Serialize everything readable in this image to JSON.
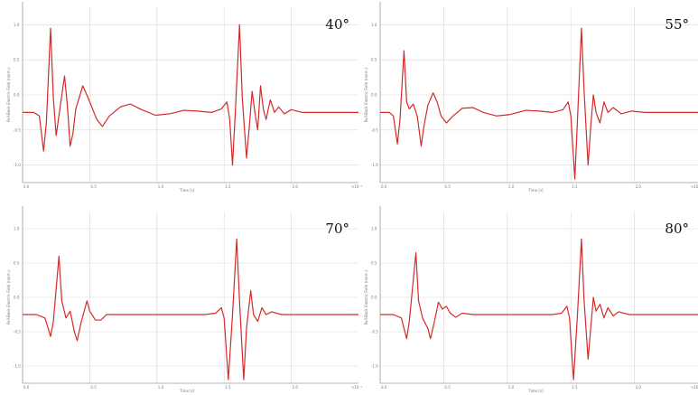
{
  "colors": {
    "trace": "#d42a2a",
    "grid": "#d8d8d8",
    "axis": "#9a9a9a",
    "text": "#111111"
  },
  "chart_data": [
    {
      "type": "line",
      "title": "40°",
      "xlabel": "Time [s]",
      "ylabel": "Pull-Back Electric Field (norm.)",
      "x_scale": "×10⁻⁹",
      "xlim": [
        0,
        2.4
      ],
      "ylim": [
        -1.0,
        1.5
      ],
      "xticks": [
        "0.0",
        "0.5",
        "1.0",
        "1.5",
        "2.0",
        "×10⁻⁹"
      ],
      "yticks": [
        "1.0",
        "0.5",
        "0.0",
        "-0.5",
        "-1.0"
      ],
      "grid": true,
      "series": [
        {
          "points": [
            [
              0,
              0
            ],
            [
              0.08,
              0
            ],
            [
              0.12,
              -0.05
            ],
            [
              0.15,
              -0.55
            ],
            [
              0.17,
              -0.15
            ],
            [
              0.2,
              1.2
            ],
            [
              0.22,
              0.2
            ],
            [
              0.24,
              -0.33
            ],
            [
              0.27,
              0.1
            ],
            [
              0.3,
              0.52
            ],
            [
              0.32,
              0.1
            ],
            [
              0.34,
              -0.48
            ],
            [
              0.36,
              -0.3
            ],
            [
              0.38,
              0.05
            ],
            [
              0.4,
              0.18
            ],
            [
              0.43,
              0.38
            ],
            [
              0.47,
              0.2
            ],
            [
              0.5,
              0.05
            ],
            [
              0.53,
              -0.1
            ],
            [
              0.57,
              -0.2
            ],
            [
              0.62,
              -0.05
            ],
            [
              0.7,
              0.08
            ],
            [
              0.77,
              0.12
            ],
            [
              0.85,
              0.04
            ],
            [
              0.95,
              -0.04
            ],
            [
              1.05,
              -0.02
            ],
            [
              1.15,
              0.03
            ],
            [
              1.25,
              0.02
            ],
            [
              1.35,
              0.0
            ],
            [
              1.42,
              0.05
            ],
            [
              1.46,
              0.15
            ],
            [
              1.48,
              -0.1
            ],
            [
              1.5,
              -0.75
            ],
            [
              1.52,
              0.0
            ],
            [
              1.55,
              1.25
            ],
            [
              1.57,
              0.2
            ],
            [
              1.6,
              -0.65
            ],
            [
              1.62,
              -0.2
            ],
            [
              1.64,
              0.3
            ],
            [
              1.66,
              0.0
            ],
            [
              1.68,
              -0.25
            ],
            [
              1.7,
              0.38
            ],
            [
              1.72,
              0.05
            ],
            [
              1.74,
              -0.1
            ],
            [
              1.77,
              0.18
            ],
            [
              1.8,
              0.0
            ],
            [
              1.83,
              0.08
            ],
            [
              1.87,
              -0.02
            ],
            [
              1.92,
              0.04
            ],
            [
              2.0,
              0.0
            ],
            [
              2.4,
              0.0
            ]
          ]
        }
      ]
    },
    {
      "type": "line",
      "title": "55°",
      "xlabel": "Time [s]",
      "ylabel": "Pull-Back Electric Field (norm.)",
      "x_scale": "×10⁻⁹",
      "xlim": [
        0,
        2.4
      ],
      "ylim": [
        -1.0,
        1.5
      ],
      "xticks": [
        "0.0",
        "0.5",
        "1.0",
        "1.5",
        "2.0",
        "×10⁻⁹"
      ],
      "yticks": [
        "1.0",
        "0.5",
        "0.0",
        "-0.5",
        "-1.0"
      ],
      "grid": true,
      "series": [
        {
          "points": [
            [
              0,
              0
            ],
            [
              0.07,
              0
            ],
            [
              0.1,
              -0.05
            ],
            [
              0.13,
              -0.45
            ],
            [
              0.15,
              -0.1
            ],
            [
              0.18,
              0.88
            ],
            [
              0.2,
              0.15
            ],
            [
              0.22,
              0.05
            ],
            [
              0.25,
              0.12
            ],
            [
              0.28,
              -0.05
            ],
            [
              0.31,
              -0.48
            ],
            [
              0.33,
              -0.2
            ],
            [
              0.36,
              0.1
            ],
            [
              0.4,
              0.28
            ],
            [
              0.43,
              0.15
            ],
            [
              0.46,
              -0.05
            ],
            [
              0.5,
              -0.15
            ],
            [
              0.55,
              -0.05
            ],
            [
              0.62,
              0.06
            ],
            [
              0.7,
              0.07
            ],
            [
              0.78,
              0.0
            ],
            [
              0.88,
              -0.05
            ],
            [
              0.98,
              -0.03
            ],
            [
              1.1,
              0.03
            ],
            [
              1.2,
              0.02
            ],
            [
              1.3,
              0.0
            ],
            [
              1.38,
              0.04
            ],
            [
              1.42,
              0.15
            ],
            [
              1.44,
              -0.05
            ],
            [
              1.47,
              -0.95
            ],
            [
              1.49,
              -0.1
            ],
            [
              1.52,
              1.2
            ],
            [
              1.54,
              0.3
            ],
            [
              1.57,
              -0.75
            ],
            [
              1.59,
              -0.2
            ],
            [
              1.61,
              0.25
            ],
            [
              1.63,
              0.0
            ],
            [
              1.66,
              -0.15
            ],
            [
              1.69,
              0.15
            ],
            [
              1.72,
              0.0
            ],
            [
              1.76,
              0.07
            ],
            [
              1.82,
              -0.02
            ],
            [
              1.9,
              0.02
            ],
            [
              2.0,
              0.0
            ],
            [
              2.4,
              0.0
            ]
          ]
        }
      ]
    },
    {
      "type": "line",
      "title": "70°",
      "xlabel": "Time [s]",
      "ylabel": "Pull-Back Electric Field (norm.)",
      "x_scale": "×10⁻⁹",
      "xlim": [
        0,
        2.4
      ],
      "ylim": [
        -1.0,
        1.5
      ],
      "xticks": [
        "0.0",
        "0.5",
        "1.0",
        "1.5",
        "2.0",
        "×10⁻⁹"
      ],
      "yticks": [
        "1.0",
        "0.5",
        "0.0",
        "-0.5",
        "-1.0"
      ],
      "grid": true,
      "series": [
        {
          "points": [
            [
              0,
              0
            ],
            [
              0.1,
              0
            ],
            [
              0.16,
              -0.05
            ],
            [
              0.2,
              -0.32
            ],
            [
              0.22,
              -0.1
            ],
            [
              0.26,
              0.85
            ],
            [
              0.28,
              0.2
            ],
            [
              0.31,
              -0.05
            ],
            [
              0.34,
              0.05
            ],
            [
              0.37,
              -0.25
            ],
            [
              0.39,
              -0.38
            ],
            [
              0.42,
              -0.1
            ],
            [
              0.46,
              0.2
            ],
            [
              0.48,
              0.05
            ],
            [
              0.52,
              -0.08
            ],
            [
              0.56,
              -0.08
            ],
            [
              0.6,
              0.0
            ],
            [
              0.7,
              0.0
            ],
            [
              1.0,
              0.0
            ],
            [
              1.3,
              0.0
            ],
            [
              1.38,
              0.02
            ],
            [
              1.42,
              0.1
            ],
            [
              1.44,
              -0.05
            ],
            [
              1.47,
              -0.95
            ],
            [
              1.5,
              0.0
            ],
            [
              1.53,
              1.1
            ],
            [
              1.55,
              0.2
            ],
            [
              1.58,
              -0.95
            ],
            [
              1.6,
              -0.2
            ],
            [
              1.63,
              0.35
            ],
            [
              1.65,
              0.0
            ],
            [
              1.68,
              -0.1
            ],
            [
              1.71,
              0.1
            ],
            [
              1.74,
              0.0
            ],
            [
              1.78,
              0.04
            ],
            [
              1.85,
              0.0
            ],
            [
              2.4,
              0.0
            ]
          ]
        }
      ]
    },
    {
      "type": "line",
      "title": "80°",
      "xlabel": "Time [s]",
      "ylabel": "Pull-Back Electric Field (norm.)",
      "x_scale": "×10⁻⁹",
      "xlim": [
        0,
        2.4
      ],
      "ylim": [
        -1.0,
        1.5
      ],
      "xticks": [
        "0.0",
        "0.5",
        "1.0",
        "1.5",
        "2.0",
        "×10⁻⁹"
      ],
      "yticks": [
        "1.0",
        "0.5",
        "0.0",
        "-0.5",
        "-1.0"
      ],
      "grid": true,
      "series": [
        {
          "points": [
            [
              0,
              0
            ],
            [
              0.1,
              0
            ],
            [
              0.16,
              -0.05
            ],
            [
              0.2,
              -0.35
            ],
            [
              0.22,
              -0.1
            ],
            [
              0.27,
              0.9
            ],
            [
              0.29,
              0.2
            ],
            [
              0.32,
              -0.05
            ],
            [
              0.36,
              -0.2
            ],
            [
              0.38,
              -0.35
            ],
            [
              0.41,
              -0.1
            ],
            [
              0.44,
              0.18
            ],
            [
              0.47,
              0.08
            ],
            [
              0.5,
              0.12
            ],
            [
              0.53,
              0.02
            ],
            [
              0.57,
              -0.04
            ],
            [
              0.62,
              0.02
            ],
            [
              0.7,
              0.0
            ],
            [
              1.0,
              0.0
            ],
            [
              1.3,
              0.0
            ],
            [
              1.37,
              0.02
            ],
            [
              1.41,
              0.12
            ],
            [
              1.43,
              -0.05
            ],
            [
              1.46,
              -0.95
            ],
            [
              1.49,
              0.0
            ],
            [
              1.52,
              1.1
            ],
            [
              1.54,
              0.2
            ],
            [
              1.57,
              -0.65
            ],
            [
              1.59,
              -0.2
            ],
            [
              1.61,
              0.25
            ],
            [
              1.63,
              0.05
            ],
            [
              1.66,
              0.15
            ],
            [
              1.69,
              -0.05
            ],
            [
              1.72,
              0.1
            ],
            [
              1.76,
              -0.02
            ],
            [
              1.8,
              0.04
            ],
            [
              1.88,
              0.0
            ],
            [
              2.4,
              0.0
            ]
          ]
        }
      ]
    }
  ]
}
